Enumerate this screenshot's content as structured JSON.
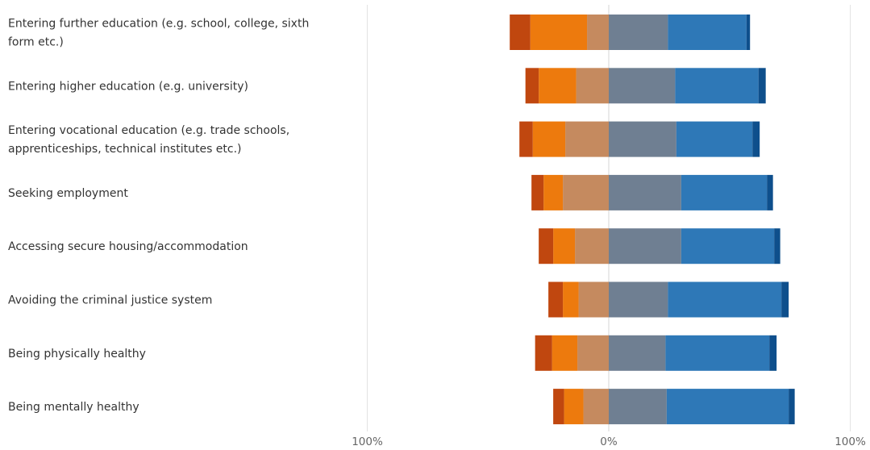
{
  "chart_data": {
    "type": "bar",
    "orientation": "horizontal",
    "stacked": "diverging",
    "title": "",
    "xlabel": "",
    "ylabel": "",
    "xlim": [
      -100,
      100
    ],
    "x_tick_labels": [
      "100%",
      "0%",
      "100%"
    ],
    "x_ticks": [
      -100,
      0,
      100
    ],
    "grid": true,
    "legend": "none",
    "categories": [
      [
        "Entering further education (e.g. school, college, sixth",
        "form etc.)"
      ],
      [
        "Entering higher education (e.g. university)"
      ],
      [
        "Entering vocational education (e.g. trade schools,",
        "apprenticeships, technical institutes etc.)"
      ],
      [
        "Seeking employment"
      ],
      [
        "Accessing secure housing/accommodation"
      ],
      [
        "Avoiding the criminal justice system"
      ],
      [
        "Being physically healthy"
      ],
      [
        "Being mentally healthy"
      ]
    ],
    "series": [
      {
        "side": "negative",
        "color": "#c0470f",
        "values": [
          8.5,
          5.5,
          5.5,
          5.0,
          6.0,
          6.0,
          7.0,
          4.5
        ]
      },
      {
        "side": "negative",
        "color": "#ed7a0d",
        "values": [
          23.5,
          15.5,
          13.5,
          8.0,
          9.0,
          6.5,
          10.5,
          8.0
        ]
      },
      {
        "side": "negative",
        "color": "#c58a5f",
        "values": [
          9.0,
          13.5,
          18.0,
          19.0,
          14.0,
          12.5,
          13.0,
          10.5
        ]
      },
      {
        "side": "positive",
        "color": "#6f7f92",
        "values": [
          24.5,
          27.5,
          28.0,
          30.0,
          30.0,
          24.5,
          23.5,
          24.0
        ]
      },
      {
        "side": "positive",
        "color": "#2e78b7",
        "values": [
          32.5,
          34.5,
          31.5,
          35.5,
          38.5,
          47.0,
          43.0,
          50.5
        ]
      },
      {
        "side": "positive",
        "color": "#0e4f8c",
        "values": [
          1.5,
          3.0,
          3.0,
          2.5,
          2.5,
          3.0,
          3.0,
          2.5
        ]
      }
    ]
  }
}
